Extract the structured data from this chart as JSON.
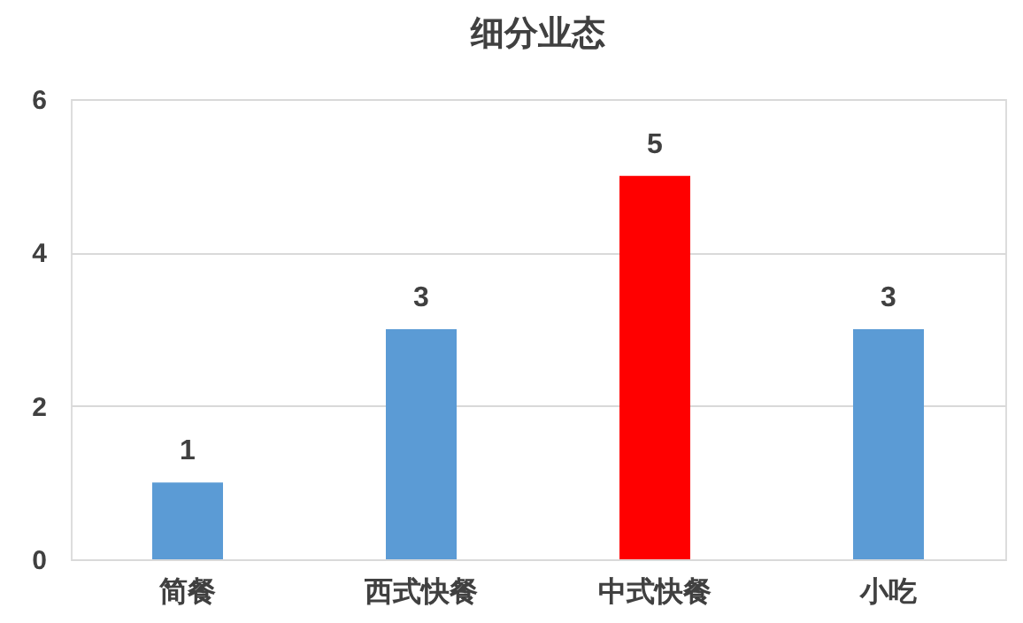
{
  "chart_data": {
    "type": "bar",
    "title": "细分业态",
    "categories": [
      "简餐",
      "西式快餐",
      "中式快餐",
      "小吃"
    ],
    "values": [
      1,
      3,
      5,
      3
    ],
    "colors": [
      "#5b9bd5",
      "#5b9bd5",
      "#ff0000",
      "#5b9bd5"
    ],
    "ylim": [
      0,
      6
    ],
    "yticks": [
      0,
      2,
      4,
      6
    ],
    "grid": "y",
    "data_labels": true
  }
}
